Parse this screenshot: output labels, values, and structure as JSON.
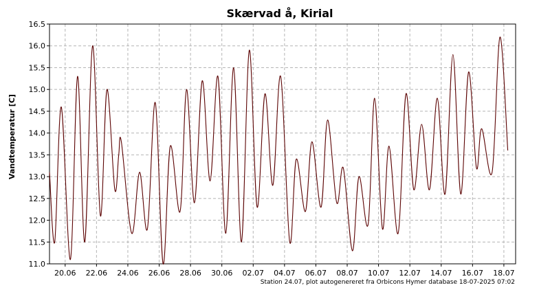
{
  "chart_data": {
    "type": "line",
    "title": "Skærvad å, Kirial",
    "ylabel": "Vandtemperatur [C]",
    "xlabel": "",
    "ylim": [
      11.0,
      16.5
    ],
    "yticks": [
      11.0,
      11.5,
      12.0,
      12.5,
      13.0,
      13.5,
      14.0,
      14.5,
      15.0,
      15.5,
      16.0,
      16.5
    ],
    "xlim": [
      "2025-06-19T00:00",
      "2025-07-18T18:00"
    ],
    "xticks": [
      {
        "date": "2025-06-20",
        "label": "20.06"
      },
      {
        "date": "2025-06-22",
        "label": "22.06"
      },
      {
        "date": "2025-06-24",
        "label": "24.06"
      },
      {
        "date": "2025-06-26",
        "label": "26.06"
      },
      {
        "date": "2025-06-28",
        "label": "28.06"
      },
      {
        "date": "2025-06-30",
        "label": "30.06"
      },
      {
        "date": "2025-07-02",
        "label": "02.07"
      },
      {
        "date": "2025-07-04",
        "label": "04.07"
      },
      {
        "date": "2025-07-06",
        "label": "06.07"
      },
      {
        "date": "2025-07-08",
        "label": "08.07"
      },
      {
        "date": "2025-07-10",
        "label": "10.07"
      },
      {
        "date": "2025-07-12",
        "label": "12.07"
      },
      {
        "date": "2025-07-14",
        "label": "14.07"
      },
      {
        "date": "2025-07-16",
        "label": "16.07"
      },
      {
        "date": "2025-07-18",
        "label": "18.07"
      }
    ],
    "grid": true,
    "legend": "none",
    "series_color": "#5a0000",
    "series": [
      {
        "points": [
          [
            "2025-06-19T00:00",
            13.1
          ],
          [
            "2025-06-19T08:00",
            11.5
          ],
          [
            "2025-06-19T18:00",
            14.6
          ],
          [
            "2025-06-20T08:00",
            11.1
          ],
          [
            "2025-06-20T19:00",
            15.3
          ],
          [
            "2025-06-21T06:00",
            11.5
          ],
          [
            "2025-06-21T18:00",
            16.0
          ],
          [
            "2025-06-22T06:00",
            12.1
          ],
          [
            "2025-06-22T16:00",
            15.0
          ],
          [
            "2025-06-23T04:00",
            12.7
          ],
          [
            "2025-06-23T10:00",
            13.5
          ],
          [
            "2025-06-23T14:00",
            13.8
          ],
          [
            "2025-06-24T06:00",
            11.7
          ],
          [
            "2025-06-24T18:00",
            13.1
          ],
          [
            "2025-06-25T06:00",
            11.8
          ],
          [
            "2025-06-25T18:00",
            14.7
          ],
          [
            "2025-06-26T06:00",
            11.0
          ],
          [
            "2025-06-26T17:00",
            13.7
          ],
          [
            "2025-06-27T08:00",
            12.2
          ],
          [
            "2025-06-27T18:00",
            15.0
          ],
          [
            "2025-06-28T06:00",
            12.4
          ],
          [
            "2025-06-28T18:00",
            15.2
          ],
          [
            "2025-06-29T06:00",
            12.9
          ],
          [
            "2025-06-29T18:00",
            15.3
          ],
          [
            "2025-06-30T06:00",
            11.7
          ],
          [
            "2025-06-30T18:00",
            15.5
          ],
          [
            "2025-07-01T06:00",
            11.5
          ],
          [
            "2025-07-01T18:00",
            15.9
          ],
          [
            "2025-07-02T06:00",
            12.3
          ],
          [
            "2025-07-02T18:00",
            14.9
          ],
          [
            "2025-07-03T06:00",
            12.8
          ],
          [
            "2025-07-03T18:00",
            15.3
          ],
          [
            "2025-07-04T08:00",
            11.5
          ],
          [
            "2025-07-04T18:00",
            13.4
          ],
          [
            "2025-07-05T08:00",
            12.2
          ],
          [
            "2025-07-05T18:00",
            13.8
          ],
          [
            "2025-07-06T08:00",
            12.3
          ],
          [
            "2025-07-06T18:00",
            14.3
          ],
          [
            "2025-07-07T08:00",
            12.4
          ],
          [
            "2025-07-07T18:00",
            13.2
          ],
          [
            "2025-07-08T08:00",
            11.3
          ],
          [
            "2025-07-08T18:00",
            13.0
          ],
          [
            "2025-07-09T08:00",
            11.9
          ],
          [
            "2025-07-09T18:00",
            14.8
          ],
          [
            "2025-07-10T06:00",
            11.8
          ],
          [
            "2025-07-10T16:00",
            13.7
          ],
          [
            "2025-07-11T06:00",
            11.7
          ],
          [
            "2025-07-11T18:00",
            14.9
          ],
          [
            "2025-07-12T06:00",
            12.7
          ],
          [
            "2025-07-12T18:00",
            14.2
          ],
          [
            "2025-07-13T06:00",
            12.7
          ],
          [
            "2025-07-13T18:00",
            14.8
          ],
          [
            "2025-07-14T06:00",
            12.6
          ],
          [
            "2025-07-14T18:00",
            15.8
          ],
          [
            "2025-07-15T06:00",
            12.6
          ],
          [
            "2025-07-15T18:00",
            15.4
          ],
          [
            "2025-07-16T06:00",
            13.2
          ],
          [
            "2025-07-16T14:00",
            14.1
          ],
          [
            "2025-07-17T06:00",
            13.1
          ],
          [
            "2025-07-17T18:00",
            16.2
          ],
          [
            "2025-07-18T06:00",
            13.6
          ]
        ]
      }
    ],
    "footer": "Station 24.07, plot autogenereret fra Orbicons Hymer database 18-07-2025 07:02"
  }
}
